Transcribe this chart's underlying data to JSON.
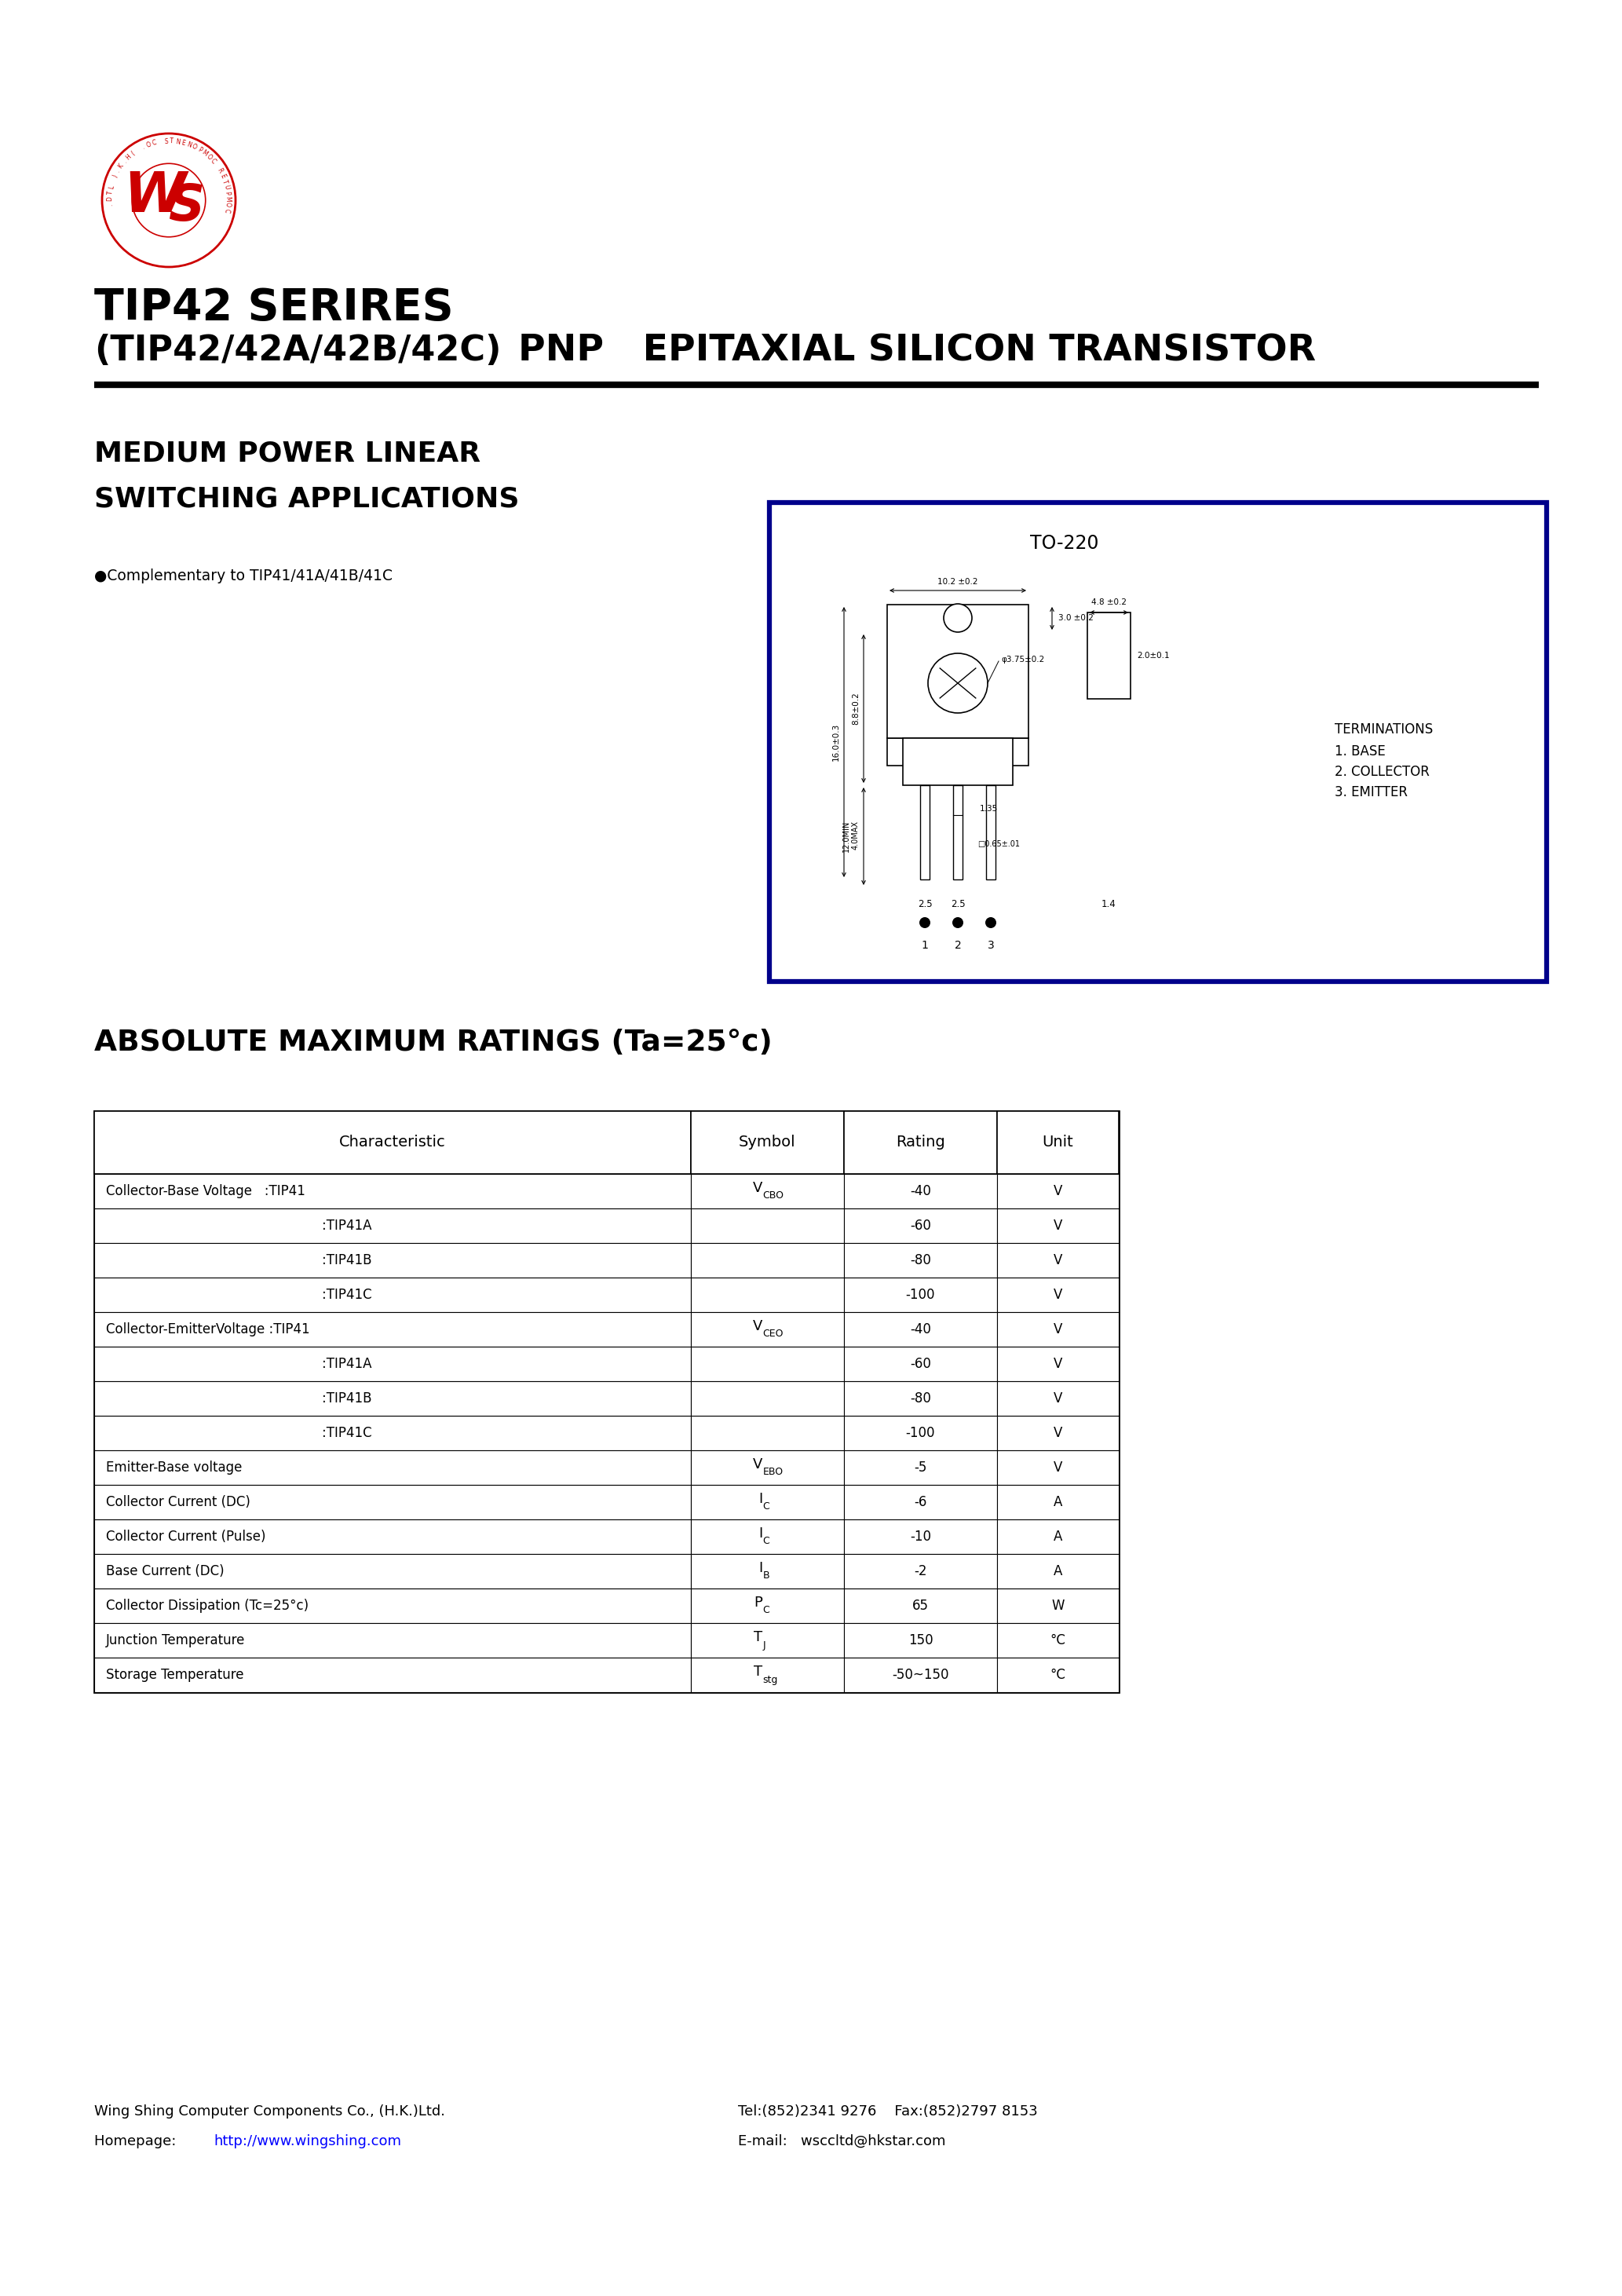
{
  "page_bg": "#ffffff",
  "title_line1": "TIP42 SERIRES",
  "title_line2": "(TIP42/42A/42B/42C)",
  "title_right": "PNP   EPITAXIAL SILICON TRANSISTOR",
  "subtitle_line1": "MEDIUM POWER LINEAR",
  "subtitle_line2": "SWITCHING APPLICATIONS",
  "bullet_text": "●Complementary to TIP41/41A/41B/41C",
  "to220_label": "TO-220",
  "terminations_line1": "TERMINATIONS",
  "terminations_line2": "1. BASE",
  "terminations_line3": "2. COLLECTOR",
  "terminations_line4": "3. EMITTER",
  "abs_max_title": "ABSOLUTE MAXIMUM RATINGS (Ta=25°c)",
  "table_headers": [
    "Characteristic",
    "Symbol",
    "Rating",
    "Unit"
  ],
  "table_rows": [
    [
      "Collector-Base Voltage   :TIP41",
      "VCBO",
      "-40",
      "V"
    ],
    [
      ":TIP41A",
      "",
      "-60",
      "V"
    ],
    [
      ":TIP41B",
      "",
      "-80",
      "V"
    ],
    [
      ":TIP41C",
      "",
      "-100",
      "V"
    ],
    [
      "Collector-EmitterVoltage :TIP41",
      "VCEO",
      "-40",
      "V"
    ],
    [
      ":TIP41A",
      "",
      "-60",
      "V"
    ],
    [
      ":TIP41B",
      "",
      "-80",
      "V"
    ],
    [
      ":TIP41C",
      "",
      "-100",
      "V"
    ],
    [
      "Emitter-Base voltage",
      "VEBO",
      "-5",
      "V"
    ],
    [
      "Collector Current (DC)",
      "IC",
      "-6",
      "A"
    ],
    [
      "Collector Current (Pulse)",
      "IC",
      "-10",
      "A"
    ],
    [
      "Base Current (DC)",
      "IB",
      "-2",
      "A"
    ],
    [
      "Collector Dissipation (Tc=25°c)",
      "PC",
      "65",
      "W"
    ],
    [
      "Junction Temperature",
      "TJ",
      "150",
      "°C"
    ],
    [
      "Storage Temperature",
      "Tstg",
      "-50~150",
      "°C"
    ]
  ],
  "footer_left_line1": "Wing Shing Computer Components Co., (H.K.)Ltd.",
  "footer_left_line2_pre": "Homepage:  ",
  "footer_left_line2_url": "http://www.wingshing.com",
  "footer_right_line1": "Tel:(852)2341 9276    Fax:(852)2797 8153",
  "footer_right_line2": "E-mail:   wsccltd@hkstar.com",
  "accent_color": "#cc0000",
  "border_color": "#00008B",
  "text_color": "#000000"
}
